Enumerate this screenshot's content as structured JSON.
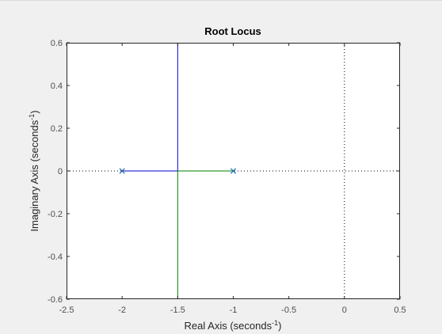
{
  "chart_data": {
    "type": "line",
    "title": "Root Locus",
    "xlabel": {
      "text": "Real Axis (seconds",
      "sup": "-1",
      "tail": ")"
    },
    "ylabel": {
      "text": "Imaginary Axis (seconds",
      "sup": "-1",
      "tail": ")"
    },
    "xlim": [
      -2.5,
      0.5
    ],
    "ylim": [
      -0.6,
      0.6
    ],
    "xticks": [
      -2.5,
      -2,
      -1.5,
      -1,
      -0.5,
      0,
      0.5
    ],
    "xtick_labels": [
      "-2.5",
      "-2",
      "-1.5",
      "-1",
      "-0.5",
      "0",
      "0.5"
    ],
    "yticks": [
      -0.6,
      -0.4,
      -0.2,
      0,
      0.2,
      0.4,
      0.6
    ],
    "ytick_labels": [
      "-0.6",
      "-0.4",
      "-0.2",
      "0",
      "0.2",
      "0.4",
      "0.6"
    ],
    "grid": false,
    "reference_lines": {
      "real_axis_zero": true,
      "imag_axis_zero": true,
      "style": "dotted"
    },
    "poles": [
      {
        "x": -2,
        "y": 0
      },
      {
        "x": -1,
        "y": 0
      }
    ],
    "pole_color": "#1f6fb2",
    "series": [
      {
        "color": "#0000cc",
        "points": [
          [
            -2,
            0
          ],
          [
            -1.5,
            0
          ],
          [
            -1.5,
            0.6
          ]
        ]
      },
      {
        "color": "#008000",
        "points": [
          [
            -1,
            0
          ],
          [
            -1.5,
            0
          ],
          [
            -1.5,
            -0.6
          ]
        ]
      }
    ],
    "colors": {
      "figure_bg": "#f0f0f0",
      "axes_bg": "#ffffff",
      "axes_edge": "#262626"
    }
  }
}
